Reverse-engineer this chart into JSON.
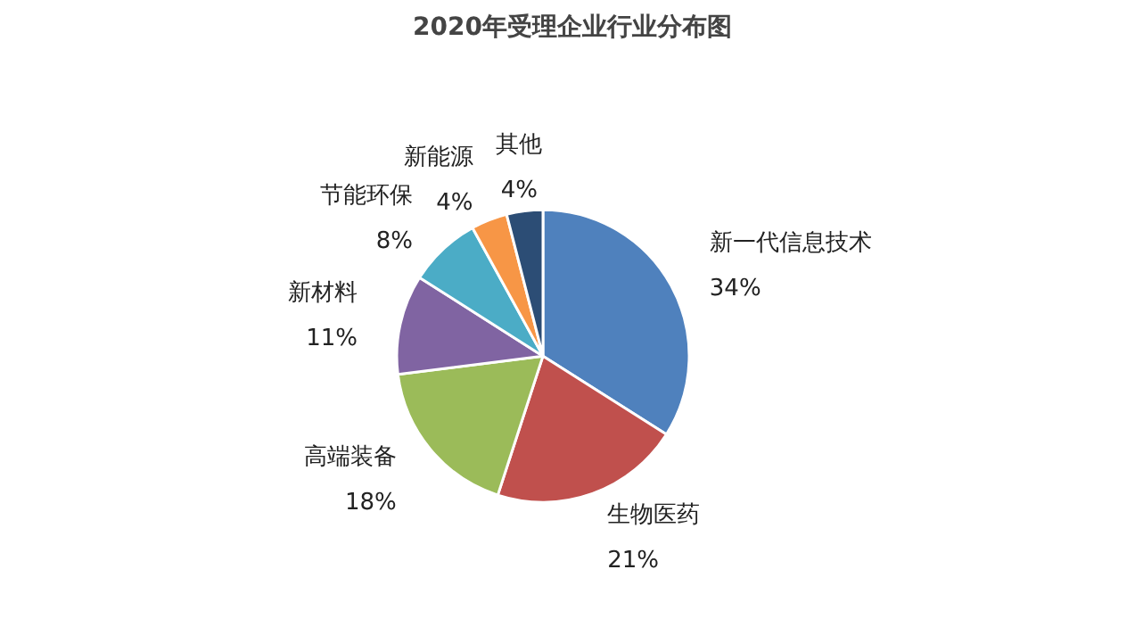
{
  "chart_data": {
    "type": "pie",
    "title": "2020年受理企业行业分布图",
    "categories": [
      "新一代信息技术",
      "生物医药",
      "高端装备",
      "新材料",
      "节能环保",
      "新能源",
      "其他"
    ],
    "values": [
      34,
      21,
      18,
      11,
      8,
      4,
      4
    ],
    "colors": [
      "#4f81bd",
      "#c0504d",
      "#9bbb59",
      "#8064a2",
      "#4bacc6",
      "#f79646",
      "#2c4d75"
    ],
    "value_labels": [
      "34%",
      "21%",
      "18%",
      "11%",
      "8%",
      "4%",
      "4%"
    ]
  }
}
